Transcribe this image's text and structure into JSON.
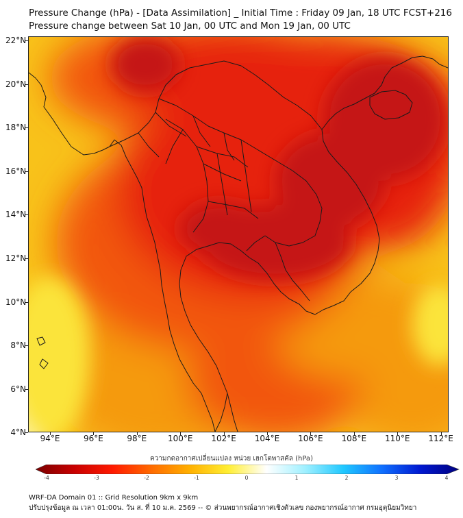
{
  "title_line1": "Pressure Change (hPa) - [Data Assimilation] _ Initial Time : Friday 09 Jan, 18 UTC FCST+216",
  "title_line2": "Pressure change between Sat 10 Jan, 00 UTC and Mon 19 Jan, 00 UTC",
  "lat_labels": [
    "22°N",
    "20°N",
    "18°N",
    "16°N",
    "14°N",
    "12°N",
    "10°N",
    "8°N",
    "6°N",
    "4°N"
  ],
  "lon_labels": [
    "94°E",
    "96°E",
    "98°E",
    "100°E",
    "102°E",
    "104°E",
    "106°E",
    "108°E",
    "110°E",
    "112°E"
  ],
  "colorbar": {
    "title": "ความกดอากาศเปลี่ยนแปลง หน่วย เฮกโตพาสคัล (hPa)",
    "ticks": [
      "-4",
      "-3",
      "-2",
      "-1",
      "0",
      "1",
      "2",
      "3",
      "4"
    ],
    "range": [
      -4,
      4
    ],
    "colors": [
      "#7a0000",
      "#c80000",
      "#ff1a00",
      "#ff6a00",
      "#ffb000",
      "#ffee33",
      "#ffffff",
      "#a0f0ff",
      "#20c8ff",
      "#1070ff",
      "#0018d0",
      "#000080"
    ]
  },
  "field_colors": {
    "dark_red": "#c51812",
    "red": "#e6200f",
    "orange_red": "#f2560a",
    "orange": "#f59a0e",
    "yellow_orange": "#f8c21a",
    "yellow": "#fbe43a",
    "pale_yellow": "#fdf6a8"
  },
  "footer_line1": "WRF-DA Domain 01 :: Grid Resolution 9km x 9km",
  "footer_line2": "ปรับปรุงข้อมูล ณ เวลา 01:00น. วัน ส. ที่ 10 ม.ค. 2569 -- © ส่วนพยากรณ์อากาศเชิงตัวเลข กองพยากรณ์อากาศ กรมอุตุนิยมวิทยา"
}
